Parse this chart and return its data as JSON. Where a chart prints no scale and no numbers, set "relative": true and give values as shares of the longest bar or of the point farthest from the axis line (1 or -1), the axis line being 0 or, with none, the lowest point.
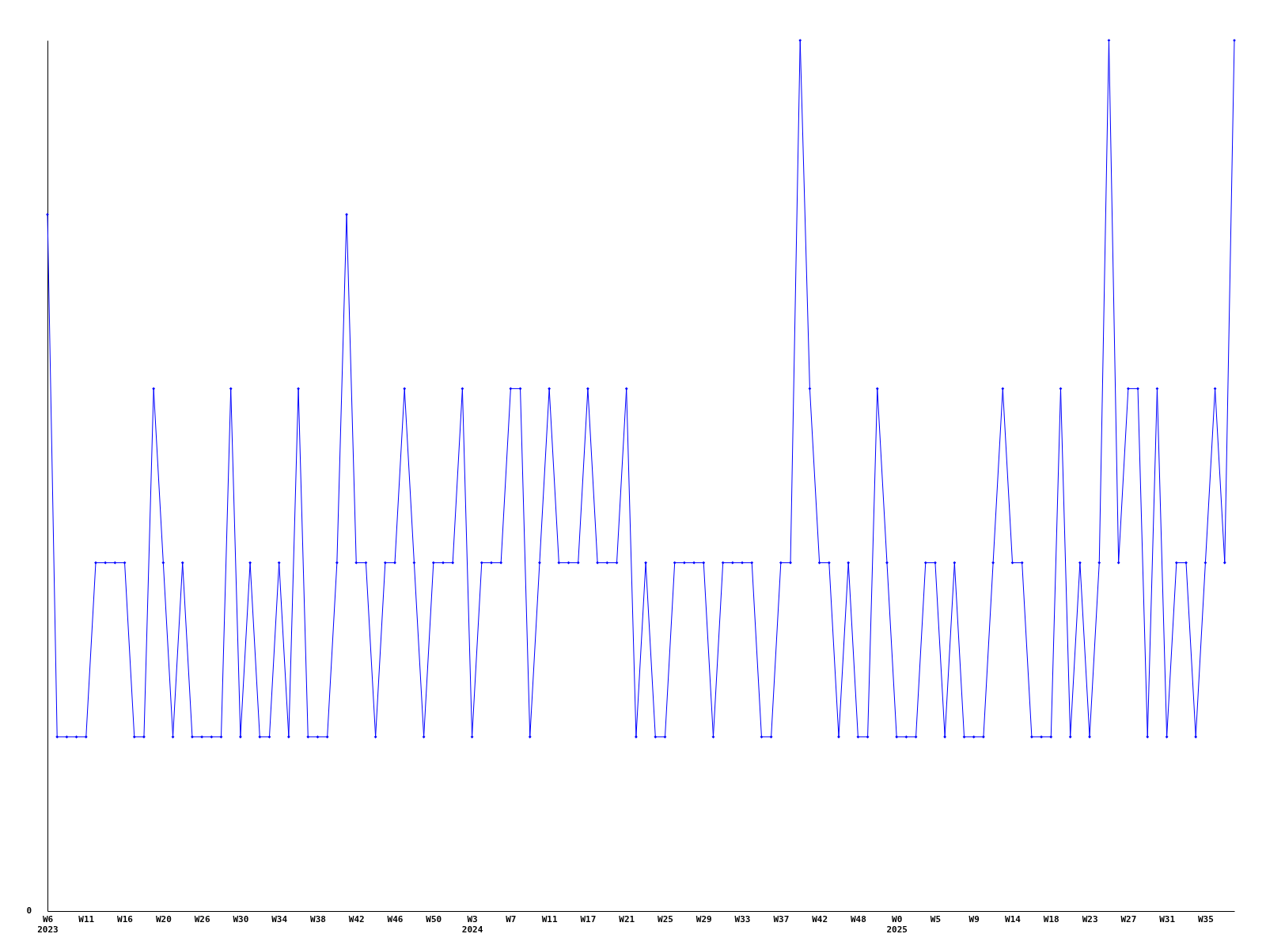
{
  "chart_data": {
    "type": "line",
    "relative": true,
    "marker": "diamond",
    "line_style": "solid",
    "grid": false,
    "legend": false,
    "categories": [
      "W6\n2023",
      null,
      null,
      null,
      "W11",
      null,
      null,
      null,
      "W16",
      null,
      null,
      null,
      "W20",
      null,
      null,
      null,
      "W26",
      null,
      null,
      null,
      "W30",
      null,
      null,
      null,
      "W34",
      null,
      null,
      null,
      "W38",
      null,
      null,
      null,
      "W42",
      null,
      null,
      null,
      "W46",
      null,
      null,
      null,
      "W50",
      null,
      null,
      null,
      "W3\n2024",
      null,
      null,
      null,
      "W7",
      null,
      null,
      null,
      "W11",
      null,
      null,
      null,
      "W17",
      null,
      null,
      null,
      "W21",
      null,
      null,
      null,
      "W25",
      null,
      null,
      null,
      "W29",
      null,
      null,
      null,
      "W33",
      null,
      null,
      null,
      "W37",
      null,
      null,
      null,
      "W42",
      null,
      null,
      null,
      "W48",
      null,
      null,
      null,
      "W0\n2025",
      null,
      null,
      null,
      "W5",
      null,
      null,
      null,
      "W9",
      null,
      null,
      null,
      "W14",
      null,
      null,
      null,
      "W18",
      null,
      null,
      null,
      "W23",
      null,
      null,
      null,
      "W27",
      null,
      null,
      null,
      "W31",
      null,
      null,
      null,
      "W35",
      null,
      null,
      null
    ],
    "series": [
      {
        "color": "#0000ff",
        "values": [
          0.8,
          0.2,
          0.2,
          0.2,
          0.2,
          0.4,
          0.4,
          0.4,
          0.4,
          0.2,
          0.2,
          0.6,
          0.4,
          0.2,
          0.4,
          0.2,
          0.2,
          0.2,
          0.2,
          0.6,
          0.2,
          0.4,
          0.2,
          0.2,
          0.4,
          0.2,
          0.6,
          0.2,
          0.2,
          0.2,
          0.4,
          0.8,
          0.4,
          0.4,
          0.2,
          0.4,
          0.4,
          0.6,
          0.4,
          0.2,
          0.4,
          0.4,
          0.4,
          0.6,
          0.2,
          0.4,
          0.4,
          0.4,
          0.6,
          0.6,
          0.2,
          0.4,
          0.6,
          0.4,
          0.4,
          0.4,
          0.6,
          0.4,
          0.4,
          0.4,
          0.6,
          0.2,
          0.4,
          0.2,
          0.2,
          0.4,
          0.4,
          0.4,
          0.4,
          0.2,
          0.4,
          0.4,
          0.4,
          0.4,
          0.2,
          0.2,
          0.4,
          0.4,
          1,
          0.6,
          0.4,
          0.4,
          0.2,
          0.4,
          0.2,
          0.2,
          0.6,
          0.4,
          0.2,
          0.2,
          0.2,
          0.4,
          0.4,
          0.2,
          0.4,
          0.2,
          0.2,
          0.2,
          0.4,
          0.6,
          0.4,
          0.4,
          0.2,
          0.2,
          0.2,
          0.6,
          0.2,
          0.4,
          0.2,
          0.4,
          1,
          0.4,
          0.6,
          0.6,
          0.2,
          0.6,
          0.2,
          0.4,
          0.4,
          0.2,
          0.4,
          0.6,
          0.4,
          1
        ]
      }
    ],
    "annotations": [
      "0"
    ]
  }
}
